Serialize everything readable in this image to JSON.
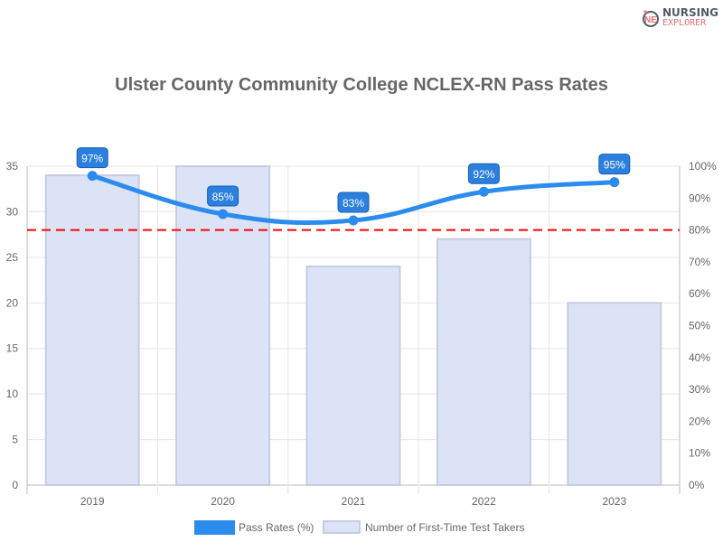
{
  "logo": {
    "line1": "NURSING",
    "line2": "EXPLORER"
  },
  "chart_data": {
    "type": "bar",
    "title": "Ulster County Community College NCLEX-RN Pass Rates",
    "categories": [
      "2019",
      "2020",
      "2021",
      "2022",
      "2023"
    ],
    "series": [
      {
        "name": "Pass Rates (%)",
        "type": "line",
        "axis": "right",
        "values": [
          97,
          85,
          83,
          92,
          95
        ],
        "color": "#2b8cee",
        "labels": [
          "97%",
          "85%",
          "83%",
          "92%",
          "95%"
        ]
      },
      {
        "name": "Number of First-Time Test Takers",
        "type": "bar",
        "axis": "left",
        "values": [
          34,
          35,
          24,
          27,
          20
        ],
        "color": "#dce3f7"
      }
    ],
    "y_left": {
      "range": [
        0,
        35
      ],
      "ticks": [
        0,
        5,
        10,
        15,
        20,
        25,
        30,
        35
      ]
    },
    "y_right": {
      "range": [
        0,
        100
      ],
      "ticks": [
        "0%",
        "10%",
        "20%",
        "30%",
        "40%",
        "50%",
        "60%",
        "70%",
        "80%",
        "90%",
        "100%"
      ]
    },
    "reference_line": {
      "value": 80,
      "axis": "right",
      "color": "#ff0000",
      "style": "dashed"
    },
    "grid": true,
    "legend": "bottom"
  }
}
